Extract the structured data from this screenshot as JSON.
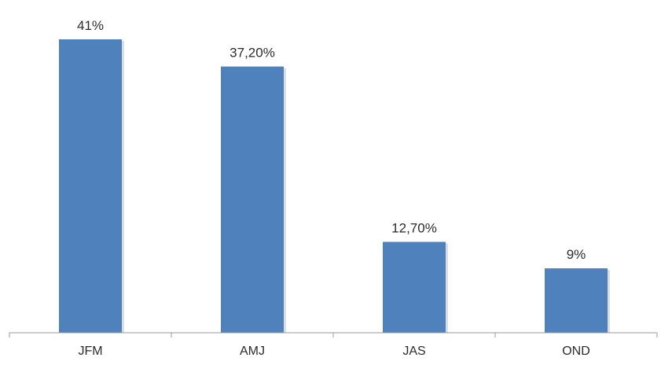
{
  "chart_data": {
    "type": "bar",
    "categories": [
      "JFM",
      "AMJ",
      "JAS",
      "OND"
    ],
    "values": [
      41,
      37.2,
      12.7,
      9
    ],
    "value_labels": [
      "41%",
      "37,20%",
      "12,70%",
      "9%"
    ],
    "ylim": [
      0,
      41
    ],
    "grid": false,
    "legend": "none",
    "colors": {
      "bar": "#4f81bd",
      "axis": "#9a9a9a",
      "text": "#2b2b2b"
    }
  }
}
